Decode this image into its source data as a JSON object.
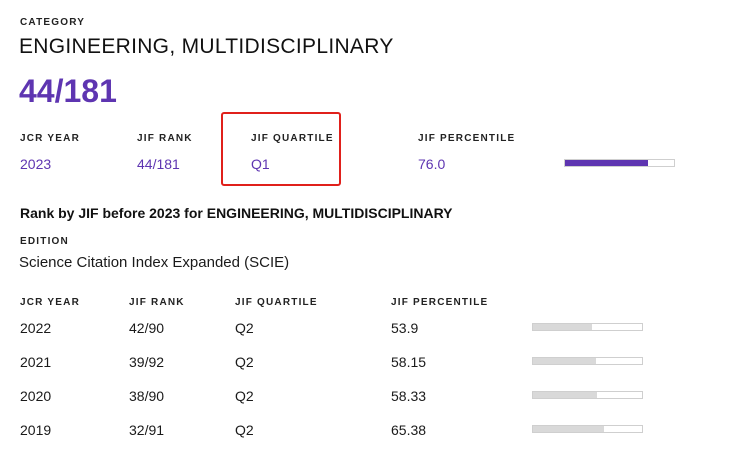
{
  "category": {
    "label": "CATEGORY",
    "name": "ENGINEERING, MULTIDISCIPLINARY",
    "rank": "44/181"
  },
  "current": {
    "headers": {
      "jcr_year": "JCR YEAR",
      "jif_rank": "JIF RANK",
      "jif_quartile": "JIF QUARTILE",
      "jif_percentile": "JIF PERCENTILE"
    },
    "jcr_year": "2023",
    "jif_rank": "44/181",
    "jif_quartile": "Q1",
    "jif_percentile": "76.0",
    "percentile_value": 76.0,
    "bar_color": "#5e35b1"
  },
  "highlight_color": "#e0201b",
  "history": {
    "heading": "Rank by JIF before 2023 for ENGINEERING, MULTIDISCIPLINARY",
    "edition_label": "EDITION",
    "edition_value": "Science Citation Index Expanded (SCIE)",
    "headers": {
      "jcr_year": "JCR YEAR",
      "jif_rank": "JIF RANK",
      "jif_quartile": "JIF QUARTILE",
      "jif_percentile": "JIF PERCENTILE"
    },
    "rows": [
      {
        "jcr_year": "2022",
        "jif_rank": "42/90",
        "jif_quartile": "Q2",
        "jif_percentile": "53.9",
        "percentile_value": 53.9
      },
      {
        "jcr_year": "2021",
        "jif_rank": "39/92",
        "jif_quartile": "Q2",
        "jif_percentile": "58.15",
        "percentile_value": 58.15
      },
      {
        "jcr_year": "2020",
        "jif_rank": "38/90",
        "jif_quartile": "Q2",
        "jif_percentile": "58.33",
        "percentile_value": 58.33
      },
      {
        "jcr_year": "2019",
        "jif_rank": "32/91",
        "jif_quartile": "Q2",
        "jif_percentile": "65.38",
        "percentile_value": 65.38
      }
    ],
    "bar_color": "#d9d9d9"
  }
}
